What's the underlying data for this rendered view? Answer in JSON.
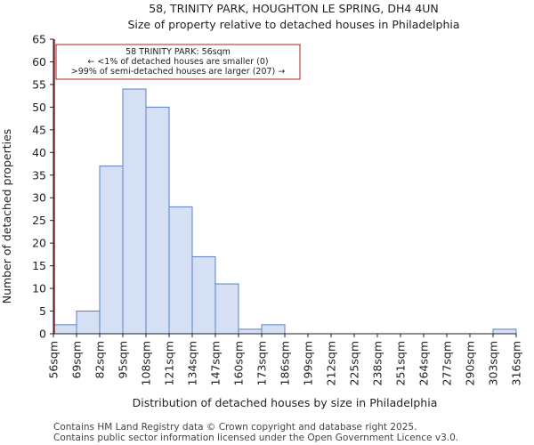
{
  "chart_data": {
    "type": "bar",
    "title": "58, TRINITY PARK, HOUGHTON LE SPRING, DH4 4UN",
    "subtitle": "Size of property relative to detached houses in Philadelphia",
    "xlabel": "Distribution of detached houses by size in Philadelphia",
    "ylabel": "Number of detached properties",
    "x_tick_labels": [
      "56sqm",
      "69sqm",
      "82sqm",
      "95sqm",
      "108sqm",
      "121sqm",
      "134sqm",
      "147sqm",
      "160sqm",
      "173sqm",
      "186sqm",
      "199sqm",
      "212sqm",
      "225sqm",
      "238sqm",
      "251sqm",
      "264sqm",
      "277sqm",
      "290sqm",
      "303sqm",
      "316sqm"
    ],
    "bin_edges": [
      56,
      69,
      82,
      95,
      108,
      121,
      134,
      147,
      160,
      173,
      186,
      199,
      212,
      225,
      238,
      251,
      264,
      277,
      290,
      303,
      316
    ],
    "values": [
      2,
      5,
      37,
      54,
      50,
      28,
      17,
      11,
      1,
      2,
      0,
      0,
      0,
      0,
      0,
      0,
      0,
      0,
      0,
      1
    ],
    "ylim": [
      0,
      65
    ],
    "y_ticks": [
      0,
      5,
      10,
      15,
      20,
      25,
      30,
      35,
      40,
      45,
      50,
      55,
      60,
      65
    ],
    "bar_color": "#d6e0f4",
    "bar_edge_color": "#5b7fc4",
    "marker_color": "#b01c24",
    "property_size": 56,
    "annotation": {
      "line1": "58 TRINITY PARK: 56sqm",
      "line2": "← <1% of detached houses are smaller (0)",
      "line3": ">99% of semi-detached houses are larger (207) →"
    }
  },
  "footer": {
    "line1": "Contains HM Land Registry data © Crown copyright and database right 2025.",
    "line2": "Contains public sector information licensed under the Open Government Licence v3.0."
  }
}
